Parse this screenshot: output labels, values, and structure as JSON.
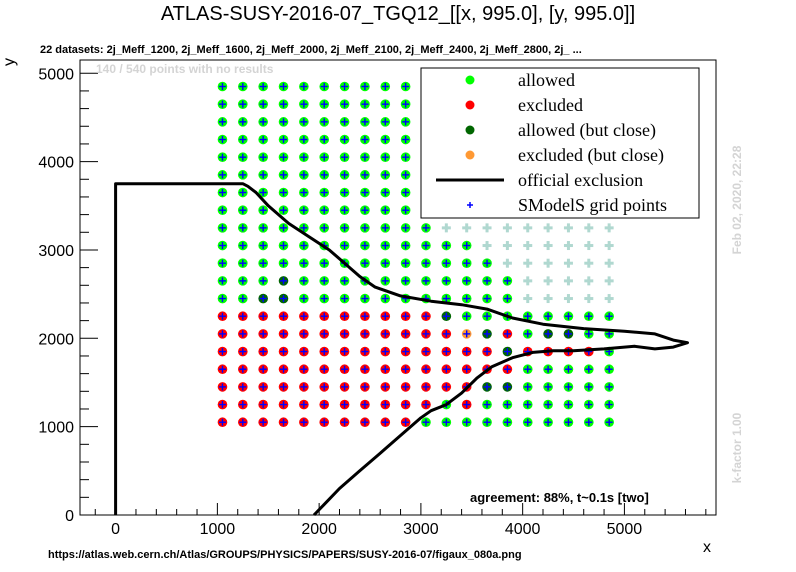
{
  "chart_data": {
    "type": "scatter",
    "title": "ATLAS-SUSY-2016-07_TGQ12_[[x, 995.0], [y, 995.0]]",
    "subtitle": "22 datasets: 2j_Meff_1200, 2j_Meff_1600, 2j_Meff_2000, 2j_Meff_2100, 2j_Meff_2400, 2j_Meff_2800, 2j_ ...",
    "no_results_note": "140 / 540 points with no results",
    "xlabel": "x",
    "ylabel": "y",
    "xlim": [
      -350,
      5900
    ],
    "ylim": [
      0,
      5150
    ],
    "xticks": [
      0,
      1000,
      2000,
      3000,
      4000,
      5000
    ],
    "yticks": [
      0,
      1000,
      2000,
      3000,
      4000,
      5000
    ],
    "date_label": "Feb 02, 2020, 22:28",
    "kfactor_label": "k-factor 1.00",
    "agreement_label": "agreement: 88%, t~0.1s [two]",
    "source_url": "https://atlas.web.cern.ch/Atlas/GROUPS/PHYSICS/PAPERS/SUSY-2016-07/figaux_080a.png",
    "legend": {
      "position": "top-right",
      "entries": [
        {
          "label": "allowed",
          "kind": "point",
          "color": "#00ff00"
        },
        {
          "label": "excluded",
          "kind": "point",
          "color": "#ff0000"
        },
        {
          "label": "allowed (but close)",
          "kind": "point",
          "color": "#006600"
        },
        {
          "label": "excluded (but close)",
          "kind": "point",
          "color": "#ff9933"
        },
        {
          "label": "official exclusion",
          "kind": "line",
          "color": "#000000"
        },
        {
          "label": "SModelS grid points",
          "kind": "cross",
          "color": "#0000ff"
        }
      ]
    },
    "colors": {
      "allowed": "#00ff00",
      "excluded": "#ff0000",
      "allowed_close": "#006600",
      "excluded_close": "#ff9933",
      "grid_cross": "#0000ff",
      "no_result_cross": "#b0d8d0"
    },
    "grid": {
      "x_start": 1050,
      "x_step": 200,
      "x_count": 20,
      "y_start": 1050,
      "y_step": 200,
      "y_count": 20,
      "y_rows_top": [
        4850,
        4650,
        4450,
        4250,
        4050,
        3850,
        3650,
        3450,
        3250,
        3050,
        2850,
        2650,
        2450,
        2250,
        2050,
        1850,
        1650,
        1450,
        1250,
        1050
      ],
      "rows": [
        "AAAAAAAAAANNNNNNNNNN",
        "AAAAAAAAAANNNNNNNNNN",
        "AAAAAAAAAANNNNNNNNNN",
        "AAAAAAAAAANNNNNNNNNN",
        "AAAAAAAAAANNNNNNNNNN",
        "AAAAAAAAAANNNNNNNNNN",
        "AAAAAAAAAANNNNNNNNNN",
        "AAAAAAAAAANNNNNNNNNN",
        "AAAAAAAAAAANNNNNNNNN",
        "AAAAAAAAAAAAANNNNNNN",
        "AAAAAAAAAAAAAANNNNNN",
        "AAACAAAAAAAAAAANNNNN",
        "AACCAAAAAAAAAAANNNNN",
        "EEEEEEEEEEECAAAAAAAA",
        "EEEEEEEEEEEEOCEACCAA",
        "EEEEEEEEEEEEEECEEEEA",
        "EEEEEEEEEEEEEEEAAAAA",
        "EEEEEEEEEEEEECCAAAAA",
        "EEEEEEEEEEEAEAAAAAAA",
        "EEEEEEEEEEAAAAAAAAAA"
      ]
    },
    "exclusion_curve": [
      [
        0,
        0
      ],
      [
        0,
        3750
      ],
      [
        1250,
        3750
      ],
      [
        1300,
        3720
      ],
      [
        1380,
        3650
      ],
      [
        1500,
        3500
      ],
      [
        1700,
        3300
      ],
      [
        1900,
        3150
      ],
      [
        2100,
        3000
      ],
      [
        2250,
        2850
      ],
      [
        2400,
        2700
      ],
      [
        2550,
        2580
      ],
      [
        2800,
        2480
      ],
      [
        3100,
        2420
      ],
      [
        3400,
        2380
      ],
      [
        3650,
        2330
      ],
      [
        3900,
        2230
      ],
      [
        4200,
        2160
      ],
      [
        4600,
        2110
      ],
      [
        5000,
        2080
      ],
      [
        5300,
        2050
      ],
      [
        5480,
        1980
      ],
      [
        5620,
        1950
      ],
      [
        5480,
        1900
      ],
      [
        5300,
        1880
      ],
      [
        5100,
        1910
      ],
      [
        4800,
        1880
      ],
      [
        4500,
        1860
      ],
      [
        4300,
        1860
      ],
      [
        4100,
        1840
      ],
      [
        3900,
        1780
      ],
      [
        3700,
        1680
      ],
      [
        3550,
        1550
      ],
      [
        3400,
        1380
      ],
      [
        3250,
        1250
      ],
      [
        3100,
        1180
      ],
      [
        3000,
        1100
      ],
      [
        2800,
        900
      ],
      [
        2600,
        700
      ],
      [
        2400,
        500
      ],
      [
        2200,
        300
      ],
      [
        2050,
        120
      ],
      [
        1950,
        0
      ]
    ]
  }
}
